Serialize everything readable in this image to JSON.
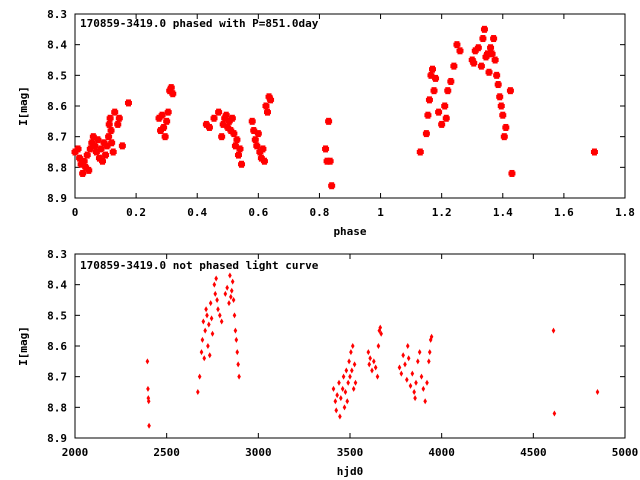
{
  "chart_data": [
    {
      "type": "scatter",
      "title": "170859-3419.0 phased with P=851.0day",
      "xlabel": "phase",
      "ylabel": "I[mag]",
      "xlim": [
        0,
        1.8
      ],
      "ylim": [
        8.9,
        8.3
      ],
      "y_inverted": true,
      "xticks": [
        "0",
        "0.2",
        "0.4",
        "0.6",
        "0.8",
        "1",
        "1.2",
        "1.4",
        "1.6",
        "1.8"
      ],
      "yticks": [
        "8.3",
        "8.4",
        "8.5",
        "8.6",
        "8.7",
        "8.8",
        "8.9"
      ],
      "marker_color": "#ff0000",
      "marker_size": "large",
      "grid": false,
      "series": [
        {
          "points": [
            [
              0.0,
              8.75
            ],
            [
              0.01,
              8.74
            ],
            [
              0.015,
              8.77
            ],
            [
              0.02,
              8.79
            ],
            [
              0.025,
              8.82
            ],
            [
              0.03,
              8.78
            ],
            [
              0.035,
              8.8
            ],
            [
              0.04,
              8.76
            ],
            [
              0.045,
              8.81
            ],
            [
              0.05,
              8.74
            ],
            [
              0.055,
              8.72
            ],
            [
              0.06,
              8.7
            ],
            [
              0.065,
              8.73
            ],
            [
              0.07,
              8.75
            ],
            [
              0.075,
              8.71
            ],
            [
              0.08,
              8.77
            ],
            [
              0.085,
              8.74
            ],
            [
              0.09,
              8.78
            ],
            [
              0.095,
              8.72
            ],
            [
              0.1,
              8.76
            ],
            [
              0.105,
              8.73
            ],
            [
              0.11,
              8.7
            ],
            [
              0.112,
              8.66
            ],
            [
              0.115,
              8.64
            ],
            [
              0.118,
              8.68
            ],
            [
              0.12,
              8.72
            ],
            [
              0.125,
              8.75
            ],
            [
              0.13,
              8.62
            ],
            [
              0.14,
              8.66
            ],
            [
              0.145,
              8.64
            ],
            [
              0.155,
              8.73
            ],
            [
              0.175,
              8.59
            ],
            [
              0.275,
              8.64
            ],
            [
              0.28,
              8.68
            ],
            [
              0.285,
              8.63
            ],
            [
              0.29,
              8.67
            ],
            [
              0.295,
              8.7
            ],
            [
              0.3,
              8.65
            ],
            [
              0.305,
              8.62
            ],
            [
              0.31,
              8.55
            ],
            [
              0.315,
              8.54
            ],
            [
              0.32,
              8.56
            ],
            [
              0.43,
              8.66
            ],
            [
              0.44,
              8.67
            ],
            [
              0.455,
              8.64
            ],
            [
              0.47,
              8.62
            ],
            [
              0.48,
              8.7
            ],
            [
              0.485,
              8.66
            ],
            [
              0.49,
              8.64
            ],
            [
              0.495,
              8.63
            ],
            [
              0.5,
              8.67
            ],
            [
              0.505,
              8.65
            ],
            [
              0.51,
              8.68
            ],
            [
              0.515,
              8.64
            ],
            [
              0.52,
              8.69
            ],
            [
              0.525,
              8.73
            ],
            [
              0.53,
              8.71
            ],
            [
              0.535,
              8.76
            ],
            [
              0.54,
              8.74
            ],
            [
              0.545,
              8.79
            ],
            [
              0.58,
              8.65
            ],
            [
              0.585,
              8.68
            ],
            [
              0.59,
              8.71
            ],
            [
              0.595,
              8.73
            ],
            [
              0.6,
              8.69
            ],
            [
              0.605,
              8.75
            ],
            [
              0.61,
              8.77
            ],
            [
              0.615,
              8.74
            ],
            [
              0.62,
              8.78
            ],
            [
              0.625,
              8.6
            ],
            [
              0.63,
              8.62
            ],
            [
              0.635,
              8.57
            ],
            [
              0.64,
              8.58
            ],
            [
              0.82,
              8.74
            ],
            [
              0.825,
              8.78
            ],
            [
              0.83,
              8.65
            ],
            [
              0.835,
              8.78
            ],
            [
              0.84,
              8.86
            ],
            [
              1.13,
              8.75
            ],
            [
              1.15,
              8.69
            ],
            [
              1.155,
              8.63
            ],
            [
              1.16,
              8.58
            ],
            [
              1.165,
              8.5
            ],
            [
              1.17,
              8.48
            ],
            [
              1.175,
              8.55
            ],
            [
              1.18,
              8.51
            ],
            [
              1.19,
              8.62
            ],
            [
              1.2,
              8.66
            ],
            [
              1.21,
              8.6
            ],
            [
              1.215,
              8.64
            ],
            [
              1.22,
              8.55
            ],
            [
              1.23,
              8.52
            ],
            [
              1.24,
              8.47
            ],
            [
              1.25,
              8.4
            ],
            [
              1.26,
              8.42
            ],
            [
              1.3,
              8.45
            ],
            [
              1.305,
              8.46
            ],
            [
              1.31,
              8.42
            ],
            [
              1.32,
              8.41
            ],
            [
              1.33,
              8.47
            ],
            [
              1.335,
              8.38
            ],
            [
              1.34,
              8.35
            ],
            [
              1.345,
              8.44
            ],
            [
              1.35,
              8.43
            ],
            [
              1.355,
              8.49
            ],
            [
              1.36,
              8.41
            ],
            [
              1.365,
              8.43
            ],
            [
              1.37,
              8.38
            ],
            [
              1.375,
              8.45
            ],
            [
              1.38,
              8.5
            ],
            [
              1.385,
              8.53
            ],
            [
              1.39,
              8.57
            ],
            [
              1.395,
              8.6
            ],
            [
              1.4,
              8.63
            ],
            [
              1.405,
              8.7
            ],
            [
              1.41,
              8.67
            ],
            [
              1.425,
              8.55
            ],
            [
              1.43,
              8.82
            ],
            [
              1.7,
              8.75
            ]
          ]
        }
      ]
    },
    {
      "type": "scatter",
      "title": "170859-3419.0 not phased light curve",
      "xlabel": "hjd0",
      "ylabel": "I[mag]",
      "xlim": [
        2000,
        5000
      ],
      "ylim": [
        8.9,
        8.3
      ],
      "y_inverted": true,
      "xticks": [
        "2000",
        "2500",
        "3000",
        "3500",
        "4000",
        "4500",
        "5000"
      ],
      "yticks": [
        "8.3",
        "8.4",
        "8.5",
        "8.6",
        "8.7",
        "8.8",
        "8.9"
      ],
      "marker_color": "#ff0000",
      "marker_size": "small",
      "grid": false,
      "series": [
        {
          "points": [
            [
              2395,
              8.65
            ],
            [
              2398,
              8.74
            ],
            [
              2400,
              8.77
            ],
            [
              2402,
              8.78
            ],
            [
              2404,
              8.86
            ],
            [
              2670,
              8.75
            ],
            [
              2680,
              8.7
            ],
            [
              2690,
              8.62
            ],
            [
              2695,
              8.58
            ],
            [
              2700,
              8.52
            ],
            [
              2705,
              8.64
            ],
            [
              2710,
              8.55
            ],
            [
              2715,
              8.48
            ],
            [
              2720,
              8.5
            ],
            [
              2725,
              8.6
            ],
            [
              2730,
              8.53
            ],
            [
              2735,
              8.63
            ],
            [
              2740,
              8.46
            ],
            [
              2745,
              8.51
            ],
            [
              2750,
              8.56
            ],
            [
              2760,
              8.4
            ],
            [
              2765,
              8.43
            ],
            [
              2770,
              8.38
            ],
            [
              2775,
              8.45
            ],
            [
              2780,
              8.48
            ],
            [
              2790,
              8.5
            ],
            [
              2800,
              8.52
            ],
            [
              2820,
              8.43
            ],
            [
              2830,
              8.41
            ],
            [
              2840,
              8.46
            ],
            [
              2845,
              8.37
            ],
            [
              2850,
              8.44
            ],
            [
              2855,
              8.42
            ],
            [
              2860,
              8.39
            ],
            [
              2865,
              8.45
            ],
            [
              2870,
              8.5
            ],
            [
              2875,
              8.55
            ],
            [
              2880,
              8.58
            ],
            [
              2885,
              8.62
            ],
            [
              2890,
              8.66
            ],
            [
              2895,
              8.7
            ],
            [
              3410,
              8.74
            ],
            [
              3420,
              8.78
            ],
            [
              3425,
              8.81
            ],
            [
              3430,
              8.76
            ],
            [
              3440,
              8.72
            ],
            [
              3445,
              8.83
            ],
            [
              3450,
              8.77
            ],
            [
              3460,
              8.74
            ],
            [
              3465,
              8.7
            ],
            [
              3470,
              8.8
            ],
            [
              3475,
              8.75
            ],
            [
              3480,
              8.68
            ],
            [
              3485,
              8.78
            ],
            [
              3490,
              8.72
            ],
            [
              3495,
              8.65
            ],
            [
              3500,
              8.7
            ],
            [
              3505,
              8.62
            ],
            [
              3510,
              8.68
            ],
            [
              3515,
              8.6
            ],
            [
              3520,
              8.74
            ],
            [
              3525,
              8.66
            ],
            [
              3530,
              8.72
            ],
            [
              3600,
              8.62
            ],
            [
              3605,
              8.66
            ],
            [
              3610,
              8.64
            ],
            [
              3620,
              8.68
            ],
            [
              3630,
              8.65
            ],
            [
              3640,
              8.67
            ],
            [
              3650,
              8.7
            ],
            [
              3655,
              8.6
            ],
            [
              3660,
              8.55
            ],
            [
              3665,
              8.54
            ],
            [
              3670,
              8.56
            ],
            [
              3770,
              8.67
            ],
            [
              3780,
              8.69
            ],
            [
              3790,
              8.63
            ],
            [
              3800,
              8.66
            ],
            [
              3810,
              8.71
            ],
            [
              3815,
              8.6
            ],
            [
              3820,
              8.64
            ],
            [
              3830,
              8.73
            ],
            [
              3840,
              8.69
            ],
            [
              3850,
              8.75
            ],
            [
              3855,
              8.77
            ],
            [
              3860,
              8.72
            ],
            [
              3870,
              8.65
            ],
            [
              3880,
              8.62
            ],
            [
              3890,
              8.7
            ],
            [
              3900,
              8.74
            ],
            [
              3910,
              8.78
            ],
            [
              3920,
              8.72
            ],
            [
              3930,
              8.65
            ],
            [
              3935,
              8.62
            ],
            [
              3940,
              8.58
            ],
            [
              3945,
              8.57
            ],
            [
              4610,
              8.55
            ],
            [
              4615,
              8.82
            ],
            [
              4850,
              8.75
            ]
          ]
        }
      ]
    }
  ]
}
